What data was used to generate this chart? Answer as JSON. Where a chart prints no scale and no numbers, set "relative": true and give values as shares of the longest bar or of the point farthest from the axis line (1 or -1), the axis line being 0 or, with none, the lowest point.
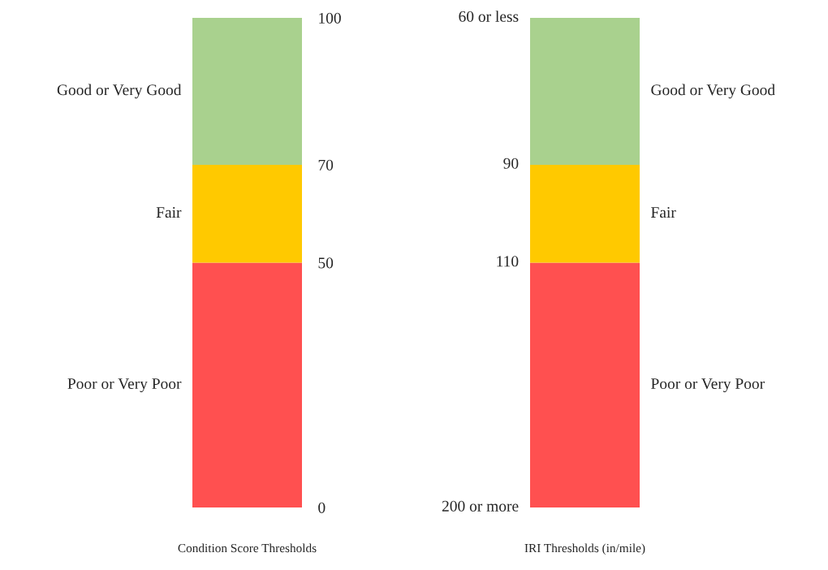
{
  "chart_data": [
    {
      "type": "bar",
      "stacked": true,
      "categories": [
        null
      ],
      "xlabel": "Condition Score Thresholds",
      "ylim": [
        0,
        100
      ],
      "yticks": [
        0,
        50,
        70,
        100
      ],
      "grid": false,
      "series": [
        {
          "name": "Poor or Very Poor",
          "color": "#ff5050",
          "values": [
            50
          ]
        },
        {
          "name": "Fair",
          "color": "#ffc900",
          "values": [
            20
          ]
        },
        {
          "name": "Good or Very Good",
          "color": "#a9d18e",
          "values": [
            30
          ]
        }
      ]
    },
    {
      "type": "bar",
      "stacked": true,
      "relative": true,
      "categories": [
        null
      ],
      "xlabel": "IRI Thresholds (in/mile)",
      "grid": false,
      "annotations": [
        "200 or more",
        "110",
        "90",
        "60 or less"
      ],
      "series": [
        {
          "name": "Poor or Very Poor",
          "color": "#ff5050",
          "values": [
            0.5
          ]
        },
        {
          "name": "Fair",
          "color": "#ffc900",
          "values": [
            0.2
          ]
        },
        {
          "name": "Good or Very Good",
          "color": "#a9d18e",
          "values": [
            0.3
          ]
        }
      ]
    }
  ]
}
